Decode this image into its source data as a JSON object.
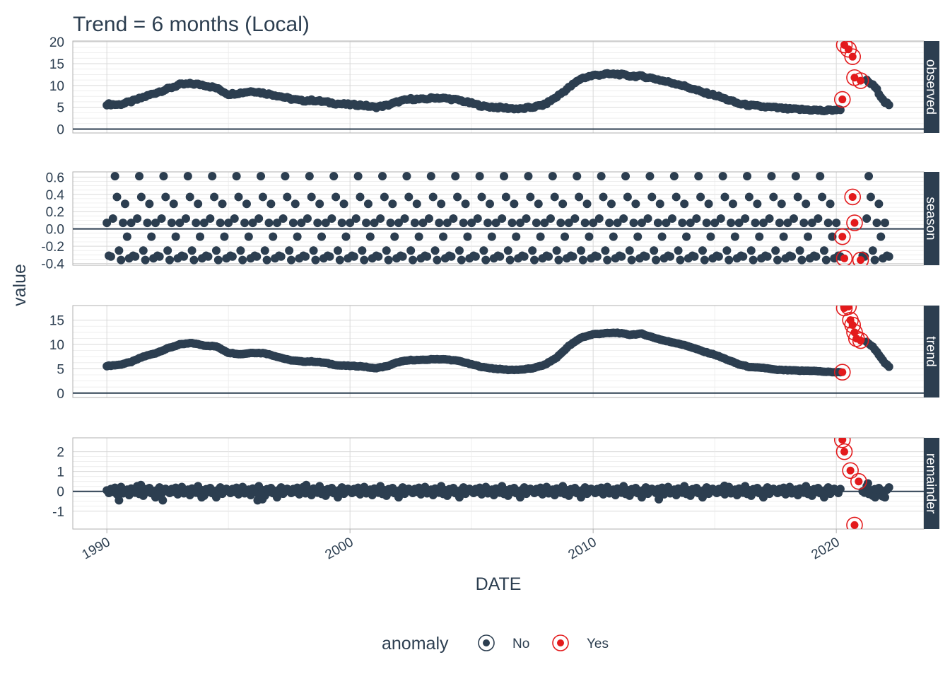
{
  "chart_data": {
    "type": "scatter",
    "title": "Trend = 6 months (Local)",
    "xlabel": "DATE",
    "ylabel": "value",
    "x_ticks": [
      "1990",
      "2000",
      "2010",
      "2020"
    ],
    "xlim": [
      1988.6,
      2023.6
    ],
    "grid": true,
    "legend": {
      "title": "anomaly",
      "placement": "bottom",
      "entries": [
        {
          "label": "No",
          "color": "#2c3e50"
        },
        {
          "label": "Yes",
          "color": "#e31a1c"
        }
      ]
    },
    "colors": {
      "normal": "#2c3e50",
      "anomaly": "#e31a1c",
      "strip": "#2c3e50",
      "grid": "#d9d9d9"
    },
    "panels": [
      {
        "name": "observed",
        "ylim": [
          -0.9,
          20.2
        ],
        "y_ticks": [
          0,
          5,
          10,
          15,
          20
        ],
        "y_tick_labels": [
          "0",
          "5",
          "10",
          "15",
          "20"
        ],
        "series": [
          {
            "date": 1990.0,
            "value": 5.7
          },
          {
            "date": 1990.5,
            "value": 5.6
          },
          {
            "date": 1991.0,
            "value": 6.3
          },
          {
            "date": 1991.5,
            "value": 7.3
          },
          {
            "date": 1992.0,
            "value": 8.3
          },
          {
            "date": 1992.5,
            "value": 9.2
          },
          {
            "date": 1993.0,
            "value": 10.2
          },
          {
            "date": 1993.5,
            "value": 10.4
          },
          {
            "date": 1994.0,
            "value": 10.1
          },
          {
            "date": 1994.5,
            "value": 9.4
          },
          {
            "date": 1995.0,
            "value": 8.0
          },
          {
            "date": 1995.5,
            "value": 8.3
          },
          {
            "date": 1996.0,
            "value": 8.7
          },
          {
            "date": 1996.5,
            "value": 8.2
          },
          {
            "date": 1997.0,
            "value": 7.7
          },
          {
            "date": 1997.5,
            "value": 7.0
          },
          {
            "date": 1998.0,
            "value": 6.5
          },
          {
            "date": 1998.5,
            "value": 6.6
          },
          {
            "date": 1999.0,
            "value": 6.2
          },
          {
            "date": 1999.5,
            "value": 5.8
          },
          {
            "date": 2000.0,
            "value": 5.6
          },
          {
            "date": 2000.5,
            "value": 5.5
          },
          {
            "date": 2001.0,
            "value": 5.0
          },
          {
            "date": 2001.5,
            "value": 5.4
          },
          {
            "date": 2002.0,
            "value": 6.3
          },
          {
            "date": 2002.5,
            "value": 6.9
          },
          {
            "date": 2003.0,
            "value": 6.8
          },
          {
            "date": 2003.5,
            "value": 7.2
          },
          {
            "date": 2004.0,
            "value": 7.0
          },
          {
            "date": 2004.5,
            "value": 6.6
          },
          {
            "date": 2005.0,
            "value": 5.9
          },
          {
            "date": 2005.5,
            "value": 5.2
          },
          {
            "date": 2006.0,
            "value": 5.0
          },
          {
            "date": 2006.5,
            "value": 4.8
          },
          {
            "date": 2007.0,
            "value": 4.6
          },
          {
            "date": 2007.5,
            "value": 5.0
          },
          {
            "date": 2008.0,
            "value": 5.6
          },
          {
            "date": 2008.5,
            "value": 7.4
          },
          {
            "date": 2009.0,
            "value": 9.5
          },
          {
            "date": 2009.5,
            "value": 11.6
          },
          {
            "date": 2010.0,
            "value": 12.3
          },
          {
            "date": 2010.5,
            "value": 12.6
          },
          {
            "date": 2011.0,
            "value": 12.6
          },
          {
            "date": 2011.5,
            "value": 12.2
          },
          {
            "date": 2012.0,
            "value": 12.1
          },
          {
            "date": 2012.5,
            "value": 11.6
          },
          {
            "date": 2013.0,
            "value": 10.9
          },
          {
            "date": 2013.5,
            "value": 10.3
          },
          {
            "date": 2014.0,
            "value": 9.4
          },
          {
            "date": 2014.5,
            "value": 8.4
          },
          {
            "date": 2015.0,
            "value": 7.8
          },
          {
            "date": 2015.5,
            "value": 6.8
          },
          {
            "date": 2016.0,
            "value": 5.8
          },
          {
            "date": 2016.5,
            "value": 5.4
          },
          {
            "date": 2017.0,
            "value": 5.1
          },
          {
            "date": 2017.5,
            "value": 4.9
          },
          {
            "date": 2018.0,
            "value": 4.6
          },
          {
            "date": 2018.5,
            "value": 4.5
          },
          {
            "date": 2019.0,
            "value": 4.4
          },
          {
            "date": 2019.5,
            "value": 4.2
          },
          {
            "date": 2019.9,
            "value": 4.4
          },
          {
            "date": 2020.17,
            "value": 4.4
          },
          {
            "date": 2021.2,
            "value": 11.3
          },
          {
            "date": 2021.4,
            "value": 10.5
          },
          {
            "date": 2021.6,
            "value": 9.6
          },
          {
            "date": 2021.8,
            "value": 7.8
          },
          {
            "date": 2022.0,
            "value": 6.2
          },
          {
            "date": 2022.2,
            "value": 5.5
          }
        ],
        "anomalies": [
          {
            "date": 2020.25,
            "value": 6.8
          },
          {
            "date": 2020.33,
            "value": 19.3
          },
          {
            "date": 2020.5,
            "value": 18.3
          },
          {
            "date": 2020.67,
            "value": 16.6
          },
          {
            "date": 2020.75,
            "value": 11.8
          },
          {
            "date": 2021.0,
            "value": 11.1
          }
        ]
      },
      {
        "name": "season",
        "ylim": [
          -0.42,
          0.66
        ],
        "y_ticks": [
          -0.4,
          -0.2,
          0.0,
          0.2,
          0.4,
          0.6
        ],
        "y_tick_labels": [
          "-0.4",
          "-0.2",
          "0.0",
          "0.2",
          "0.4",
          "0.6"
        ],
        "season_pattern": [
          0.07,
          -0.31,
          -0.32,
          0.12,
          0.61,
          0.37,
          -0.25,
          -0.36,
          0.07,
          0.29,
          -0.09,
          -0.34
        ],
        "series_range": [
          1990.0,
          2022.2
        ],
        "anomalies": [
          {
            "date": 2020.25,
            "value": -0.09
          },
          {
            "date": 2020.33,
            "value": -0.34
          },
          {
            "date": 2020.67,
            "value": 0.37
          },
          {
            "date": 2020.75,
            "value": 0.07
          },
          {
            "date": 2021.0,
            "value": -0.36
          }
        ]
      },
      {
        "name": "trend",
        "ylim": [
          -0.9,
          18.0
        ],
        "y_ticks": [
          0,
          5,
          10,
          15
        ],
        "y_tick_labels": [
          "0",
          "5",
          "10",
          "15"
        ],
        "series": [
          {
            "date": 1990.0,
            "value": 5.6
          },
          {
            "date": 1990.5,
            "value": 5.8
          },
          {
            "date": 1991.0,
            "value": 6.4
          },
          {
            "date": 1991.5,
            "value": 7.5
          },
          {
            "date": 1992.0,
            "value": 8.2
          },
          {
            "date": 1992.5,
            "value": 9.2
          },
          {
            "date": 1993.0,
            "value": 10.0
          },
          {
            "date": 1993.5,
            "value": 10.3
          },
          {
            "date": 1994.0,
            "value": 9.8
          },
          {
            "date": 1994.5,
            "value": 9.6
          },
          {
            "date": 1995.0,
            "value": 8.3
          },
          {
            "date": 1995.5,
            "value": 8.0
          },
          {
            "date": 1996.0,
            "value": 8.3
          },
          {
            "date": 1996.5,
            "value": 8.2
          },
          {
            "date": 1997.0,
            "value": 7.5
          },
          {
            "date": 1997.5,
            "value": 6.8
          },
          {
            "date": 1998.0,
            "value": 6.5
          },
          {
            "date": 1998.5,
            "value": 6.5
          },
          {
            "date": 1999.0,
            "value": 6.2
          },
          {
            "date": 1999.5,
            "value": 5.7
          },
          {
            "date": 2000.0,
            "value": 5.6
          },
          {
            "date": 2000.5,
            "value": 5.5
          },
          {
            "date": 2001.0,
            "value": 5.1
          },
          {
            "date": 2001.5,
            "value": 5.5
          },
          {
            "date": 2002.0,
            "value": 6.4
          },
          {
            "date": 2002.5,
            "value": 6.8
          },
          {
            "date": 2003.0,
            "value": 6.8
          },
          {
            "date": 2003.5,
            "value": 7.0
          },
          {
            "date": 2004.0,
            "value": 6.9
          },
          {
            "date": 2004.5,
            "value": 6.6
          },
          {
            "date": 2005.0,
            "value": 5.9
          },
          {
            "date": 2005.5,
            "value": 5.3
          },
          {
            "date": 2006.0,
            "value": 5.0
          },
          {
            "date": 2006.5,
            "value": 4.8
          },
          {
            "date": 2007.0,
            "value": 4.8
          },
          {
            "date": 2007.5,
            "value": 5.1
          },
          {
            "date": 2008.0,
            "value": 5.8
          },
          {
            "date": 2008.5,
            "value": 7.3
          },
          {
            "date": 2009.0,
            "value": 9.7
          },
          {
            "date": 2009.5,
            "value": 11.4
          },
          {
            "date": 2010.0,
            "value": 12.1
          },
          {
            "date": 2010.5,
            "value": 12.3
          },
          {
            "date": 2011.0,
            "value": 12.4
          },
          {
            "date": 2011.5,
            "value": 12.0
          },
          {
            "date": 2012.0,
            "value": 12.2
          },
          {
            "date": 2012.5,
            "value": 11.4
          },
          {
            "date": 2013.0,
            "value": 10.7
          },
          {
            "date": 2013.5,
            "value": 10.2
          },
          {
            "date": 2014.0,
            "value": 9.5
          },
          {
            "date": 2014.5,
            "value": 8.6
          },
          {
            "date": 2015.0,
            "value": 7.9
          },
          {
            "date": 2015.5,
            "value": 6.9
          },
          {
            "date": 2016.0,
            "value": 5.9
          },
          {
            "date": 2016.5,
            "value": 5.3
          },
          {
            "date": 2017.0,
            "value": 5.2
          },
          {
            "date": 2017.5,
            "value": 4.8
          },
          {
            "date": 2018.0,
            "value": 4.7
          },
          {
            "date": 2018.5,
            "value": 4.6
          },
          {
            "date": 2019.0,
            "value": 4.6
          },
          {
            "date": 2019.5,
            "value": 4.4
          },
          {
            "date": 2020.0,
            "value": 4.3
          },
          {
            "date": 2020.17,
            "value": 4.3
          },
          {
            "date": 2021.17,
            "value": 10.8
          },
          {
            "date": 2021.5,
            "value": 9.5
          },
          {
            "date": 2021.8,
            "value": 7.6
          },
          {
            "date": 2022.0,
            "value": 6.2
          },
          {
            "date": 2022.2,
            "value": 5.3
          }
        ],
        "anomalies": [
          {
            "date": 2020.25,
            "value": 4.3
          },
          {
            "date": 2020.33,
            "value": 17.5
          },
          {
            "date": 2020.5,
            "value": 17.8
          },
          {
            "date": 2020.58,
            "value": 15.0
          },
          {
            "date": 2020.67,
            "value": 14.0
          },
          {
            "date": 2020.75,
            "value": 12.5
          },
          {
            "date": 2020.83,
            "value": 11.2
          },
          {
            "date": 2021.0,
            "value": 10.8
          }
        ]
      },
      {
        "name": "remainder",
        "ylim": [
          -1.9,
          2.7
        ],
        "y_ticks": [
          -1,
          0,
          1,
          2
        ],
        "y_tick_labels": [
          "-1",
          "0",
          "1",
          "2"
        ],
        "noise": [
          0.05,
          -0.08,
          0.12,
          -0.02,
          0.18,
          -0.15,
          0.03,
          0.22,
          -0.1,
          -0.04,
          0.09,
          -0.19,
          0.14,
          0.0,
          -0.07,
          0.26,
          -0.13,
          0.06,
          -0.22,
          0.11,
          -0.03,
          0.17,
          -0.09,
          0.02,
          -0.3,
          0.08,
          0.2,
          -0.12,
          -0.01,
          0.13
        ],
        "remainder_outliers": [
          {
            "date": 1990.5,
            "value": -0.45
          },
          {
            "date": 1991.4,
            "value": 0.32
          },
          {
            "date": 1992.3,
            "value": -0.45
          },
          {
            "date": 1993.9,
            "value": -0.3
          },
          {
            "date": 1996.2,
            "value": -0.45
          },
          {
            "date": 1996.4,
            "value": -0.4
          },
          {
            "date": 1998.2,
            "value": 0.32
          },
          {
            "date": 2012.7,
            "value": -0.4
          },
          {
            "date": 2015.4,
            "value": 0.28
          },
          {
            "date": 2021.3,
            "value": 0.4
          },
          {
            "date": 2021.6,
            "value": -0.3
          },
          {
            "date": 2021.9,
            "value": -0.25
          }
        ],
        "series_range": [
          1990.0,
          2022.2
        ],
        "anomalies": [
          {
            "date": 2020.25,
            "value": 2.6
          },
          {
            "date": 2020.33,
            "value": 2.0
          },
          {
            "date": 2020.58,
            "value": 1.05
          },
          {
            "date": 2020.75,
            "value": -1.7
          },
          {
            "date": 2020.92,
            "value": 0.5
          }
        ]
      }
    ]
  }
}
